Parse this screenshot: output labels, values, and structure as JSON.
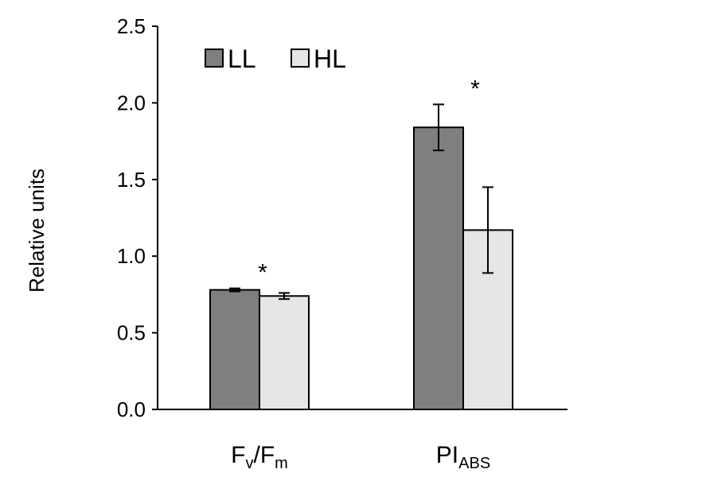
{
  "chart_data": {
    "type": "bar",
    "title": "",
    "xlabel": "",
    "ylabel": "Relative units",
    "ylim": [
      0,
      2.5
    ],
    "yticks": [
      "0.0",
      "0.5",
      "1.0",
      "1.5",
      "2.0",
      "2.5"
    ],
    "categories": [
      {
        "main": "F",
        "sub": "v",
        "main2": "/F",
        "sub2": "m"
      },
      {
        "main": "PI",
        "sub": "ABS",
        "main2": "",
        "sub2": ""
      }
    ],
    "series": [
      {
        "name": "LL",
        "color": "#7f7f7f",
        "values": [
          0.78,
          1.84
        ],
        "errors": [
          0.01,
          0.15
        ]
      },
      {
        "name": "HL",
        "color": "#e6e6e6",
        "values": [
          0.74,
          1.17
        ],
        "errors": [
          0.02,
          0.28
        ]
      }
    ],
    "significance": [
      "*",
      "*"
    ],
    "legend_position": "top-left",
    "grid": false
  }
}
